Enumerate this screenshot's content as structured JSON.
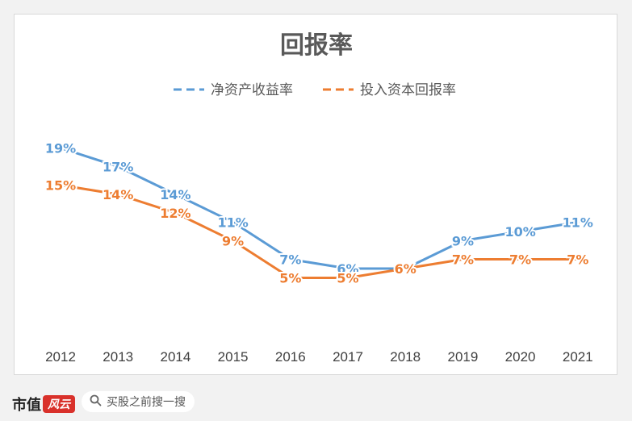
{
  "chart_data": {
    "type": "line",
    "title": "回报率",
    "categories": [
      "2012",
      "2013",
      "2014",
      "2015",
      "2016",
      "2017",
      "2018",
      "2019",
      "2020",
      "2021"
    ],
    "series": [
      {
        "name": "净资产收益率",
        "color": "#5b9bd5",
        "values": [
          19,
          17,
          14,
          11,
          7,
          6,
          6,
          9,
          10,
          11
        ],
        "labels": [
          "19%",
          "17%",
          "14%",
          "11%",
          "7%",
          "6%",
          "6%",
          "9%",
          "10%",
          "11%"
        ]
      },
      {
        "name": "投入资本回报率",
        "color": "#ed7d31",
        "values": [
          15,
          14,
          12,
          9,
          5,
          5,
          6,
          7,
          7,
          7
        ],
        "labels": [
          "15%",
          "14%",
          "12%",
          "9%",
          "5%",
          "5%",
          "6%",
          "7%",
          "7%",
          "7%"
        ]
      }
    ],
    "legend_position": "top",
    "grid": false,
    "ylim": [
      0,
      22
    ]
  },
  "footer": {
    "brand": "市值",
    "brand_logo": "风云",
    "search_placeholder": "买股之前搜一搜",
    "search_icon": "search-icon"
  }
}
